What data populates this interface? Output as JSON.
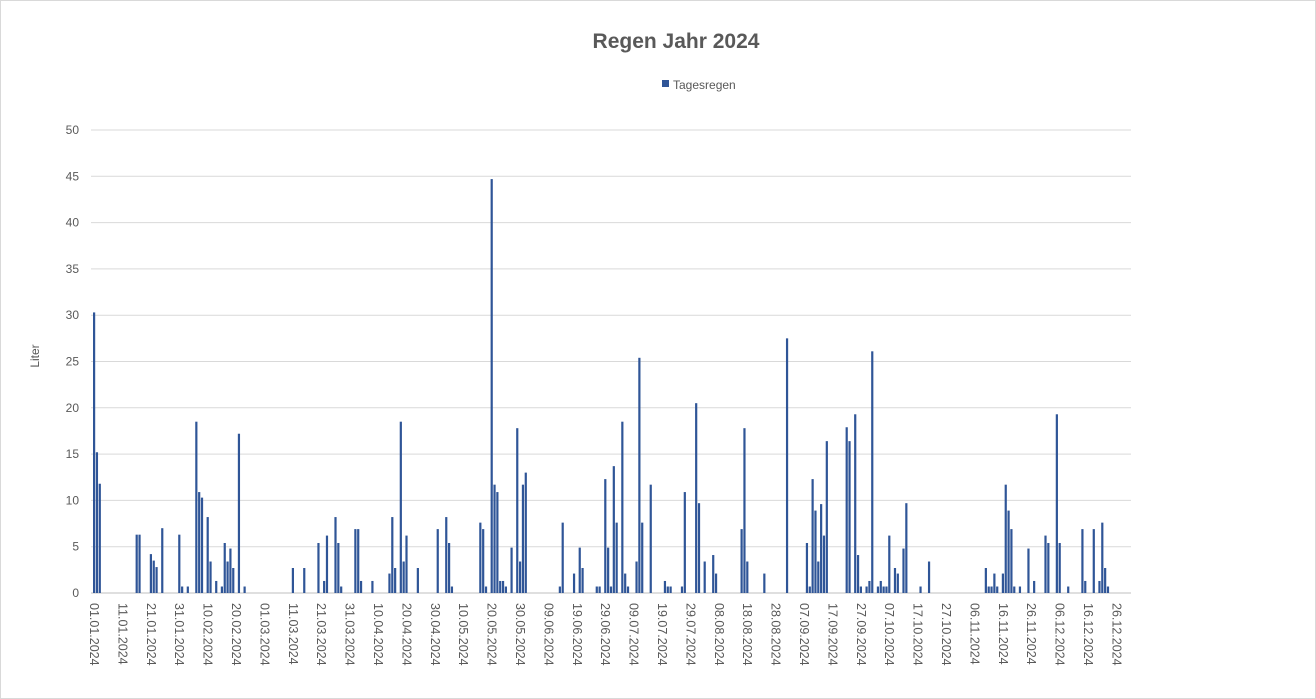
{
  "chart_data": {
    "type": "bar",
    "title": "Regen Jahr 2024",
    "xlabel": "",
    "ylabel": "Liter",
    "ylim": [
      0,
      50
    ],
    "yticks": [
      0,
      5,
      10,
      15,
      20,
      25,
      30,
      35,
      40,
      45,
      50
    ],
    "grid": true,
    "legend": {
      "position": "top",
      "entries": [
        "Tagesregen"
      ]
    },
    "year": 2024,
    "days_in_range": 366,
    "series_color": "#2f5597",
    "x_tick_labels": [
      "01.01.2024",
      "11.01.2024",
      "21.01.2024",
      "31.01.2024",
      "10.02.2024",
      "20.02.2024",
      "01.03.2024",
      "11.03.2024",
      "21.03.2024",
      "31.03.2024",
      "10.04.2024",
      "20.04.2024",
      "30.04.2024",
      "10.05.2024",
      "20.05.2024",
      "30.05.2024",
      "09.06.2024",
      "19.06.2024",
      "29.06.2024",
      "09.07.2024",
      "19.07.2024",
      "29.07.2024",
      "08.08.2024",
      "18.08.2024",
      "28.08.2024",
      "07.09.2024",
      "17.09.2024",
      "27.09.2024",
      "07.10.2024",
      "17.10.2024",
      "27.10.2024",
      "06.11.2024",
      "16.11.2024",
      "26.11.2024",
      "06.12.2024",
      "16.12.2024",
      "26.12.2024"
    ],
    "series": [
      {
        "name": "Tagesregen",
        "note_zero_days": "all other days 0",
        "points": [
          [
            "01.01",
            30.3
          ],
          [
            "02.01",
            15.2
          ],
          [
            "03.01",
            11.8
          ],
          [
            "16.01",
            6.3
          ],
          [
            "17.01",
            6.3
          ],
          [
            "21.01",
            4.2
          ],
          [
            "22.01",
            3.5
          ],
          [
            "23.01",
            2.8
          ],
          [
            "25.01",
            7.0
          ],
          [
            "31.01",
            6.3
          ],
          [
            "01.02",
            0.7
          ],
          [
            "03.02",
            0.7
          ],
          [
            "06.02",
            18.5
          ],
          [
            "07.02",
            10.9
          ],
          [
            "08.02",
            10.3
          ],
          [
            "10.02",
            8.2
          ],
          [
            "11.02",
            3.4
          ],
          [
            "13.02",
            1.3
          ],
          [
            "15.02",
            0.7
          ],
          [
            "16.02",
            5.4
          ],
          [
            "17.02",
            3.4
          ],
          [
            "18.02",
            4.8
          ],
          [
            "19.02",
            2.7
          ],
          [
            "21.02",
            17.2
          ],
          [
            "23.02",
            0.7
          ],
          [
            "11.03",
            2.7
          ],
          [
            "15.03",
            2.7
          ],
          [
            "20.03",
            5.4
          ],
          [
            "22.03",
            1.3
          ],
          [
            "23.03",
            6.2
          ],
          [
            "26.03",
            8.2
          ],
          [
            "27.03",
            5.4
          ],
          [
            "28.03",
            0.7
          ],
          [
            "02.04",
            6.9
          ],
          [
            "03.04",
            6.9
          ],
          [
            "04.04",
            1.3
          ],
          [
            "08.04",
            1.3
          ],
          [
            "14.04",
            2.1
          ],
          [
            "15.04",
            8.2
          ],
          [
            "16.04",
            2.7
          ],
          [
            "18.04",
            18.5
          ],
          [
            "19.04",
            3.4
          ],
          [
            "20.04",
            6.2
          ],
          [
            "24.04",
            2.7
          ],
          [
            "01.05",
            6.9
          ],
          [
            "04.05",
            8.2
          ],
          [
            "05.05",
            5.4
          ],
          [
            "06.05",
            0.7
          ],
          [
            "16.05",
            7.6
          ],
          [
            "17.05",
            6.9
          ],
          [
            "18.05",
            0.7
          ],
          [
            "20.05",
            44.7
          ],
          [
            "21.05",
            11.7
          ],
          [
            "22.05",
            10.9
          ],
          [
            "23.05",
            1.3
          ],
          [
            "24.05",
            1.3
          ],
          [
            "25.05",
            0.7
          ],
          [
            "27.05",
            4.9
          ],
          [
            "29.05",
            17.8
          ],
          [
            "30.05",
            3.4
          ],
          [
            "31.05",
            11.7
          ],
          [
            "01.06",
            13.0
          ],
          [
            "13.06",
            0.7
          ],
          [
            "14.06",
            7.6
          ],
          [
            "18.06",
            2.1
          ],
          [
            "20.06",
            4.9
          ],
          [
            "21.06",
            2.7
          ],
          [
            "26.06",
            0.7
          ],
          [
            "27.06",
            0.7
          ],
          [
            "29.06",
            12.3
          ],
          [
            "30.06",
            4.9
          ],
          [
            "01.07",
            0.7
          ],
          [
            "02.07",
            13.7
          ],
          [
            "03.07",
            7.6
          ],
          [
            "05.07",
            18.5
          ],
          [
            "06.07",
            2.1
          ],
          [
            "07.07",
            0.7
          ],
          [
            "10.07",
            3.4
          ],
          [
            "11.07",
            25.4
          ],
          [
            "12.07",
            7.6
          ],
          [
            "15.07",
            11.7
          ],
          [
            "20.07",
            1.3
          ],
          [
            "21.07",
            0.7
          ],
          [
            "22.07",
            0.7
          ],
          [
            "26.07",
            0.7
          ],
          [
            "27.07",
            10.9
          ],
          [
            "31.07",
            20.5
          ],
          [
            "01.08",
            9.7
          ],
          [
            "03.08",
            3.4
          ],
          [
            "06.08",
            4.1
          ],
          [
            "07.08",
            2.1
          ],
          [
            "16.08",
            6.9
          ],
          [
            "17.08",
            17.8
          ],
          [
            "18.08",
            3.4
          ],
          [
            "24.08",
            2.1
          ],
          [
            "01.09",
            27.5
          ],
          [
            "08.09",
            5.4
          ],
          [
            "09.09",
            0.7
          ],
          [
            "10.09",
            12.3
          ],
          [
            "11.09",
            8.9
          ],
          [
            "12.09",
            3.4
          ],
          [
            "13.09",
            9.6
          ],
          [
            "14.09",
            6.2
          ],
          [
            "15.09",
            16.4
          ],
          [
            "22.09",
            17.9
          ],
          [
            "23.09",
            16.4
          ],
          [
            "25.09",
            19.3
          ],
          [
            "26.09",
            4.1
          ],
          [
            "27.09",
            0.7
          ],
          [
            "29.09",
            0.7
          ],
          [
            "30.09",
            1.3
          ],
          [
            "01.10",
            26.1
          ],
          [
            "03.10",
            0.7
          ],
          [
            "04.10",
            1.3
          ],
          [
            "05.10",
            0.7
          ],
          [
            "06.10",
            0.7
          ],
          [
            "07.10",
            6.2
          ],
          [
            "09.10",
            2.7
          ],
          [
            "10.10",
            2.1
          ],
          [
            "12.10",
            4.8
          ],
          [
            "13.10",
            9.7
          ],
          [
            "18.10",
            0.7
          ],
          [
            "21.10",
            3.4
          ],
          [
            "10.11",
            2.7
          ],
          [
            "11.11",
            0.7
          ],
          [
            "12.11",
            0.7
          ],
          [
            "13.11",
            2.1
          ],
          [
            "14.11",
            0.7
          ],
          [
            "16.11",
            2.1
          ],
          [
            "17.11",
            11.7
          ],
          [
            "18.11",
            8.9
          ],
          [
            "19.11",
            6.9
          ],
          [
            "20.11",
            0.7
          ],
          [
            "22.11",
            0.7
          ],
          [
            "25.11",
            4.8
          ],
          [
            "27.11",
            1.3
          ],
          [
            "01.12",
            6.2
          ],
          [
            "02.12",
            5.4
          ],
          [
            "05.12",
            19.3
          ],
          [
            "06.12",
            5.4
          ],
          [
            "09.12",
            0.7
          ],
          [
            "14.12",
            6.9
          ],
          [
            "15.12",
            1.3
          ],
          [
            "18.12",
            6.9
          ],
          [
            "20.12",
            1.3
          ],
          [
            "21.12",
            7.6
          ],
          [
            "22.12",
            2.7
          ],
          [
            "23.12",
            0.7
          ]
        ]
      }
    ]
  }
}
